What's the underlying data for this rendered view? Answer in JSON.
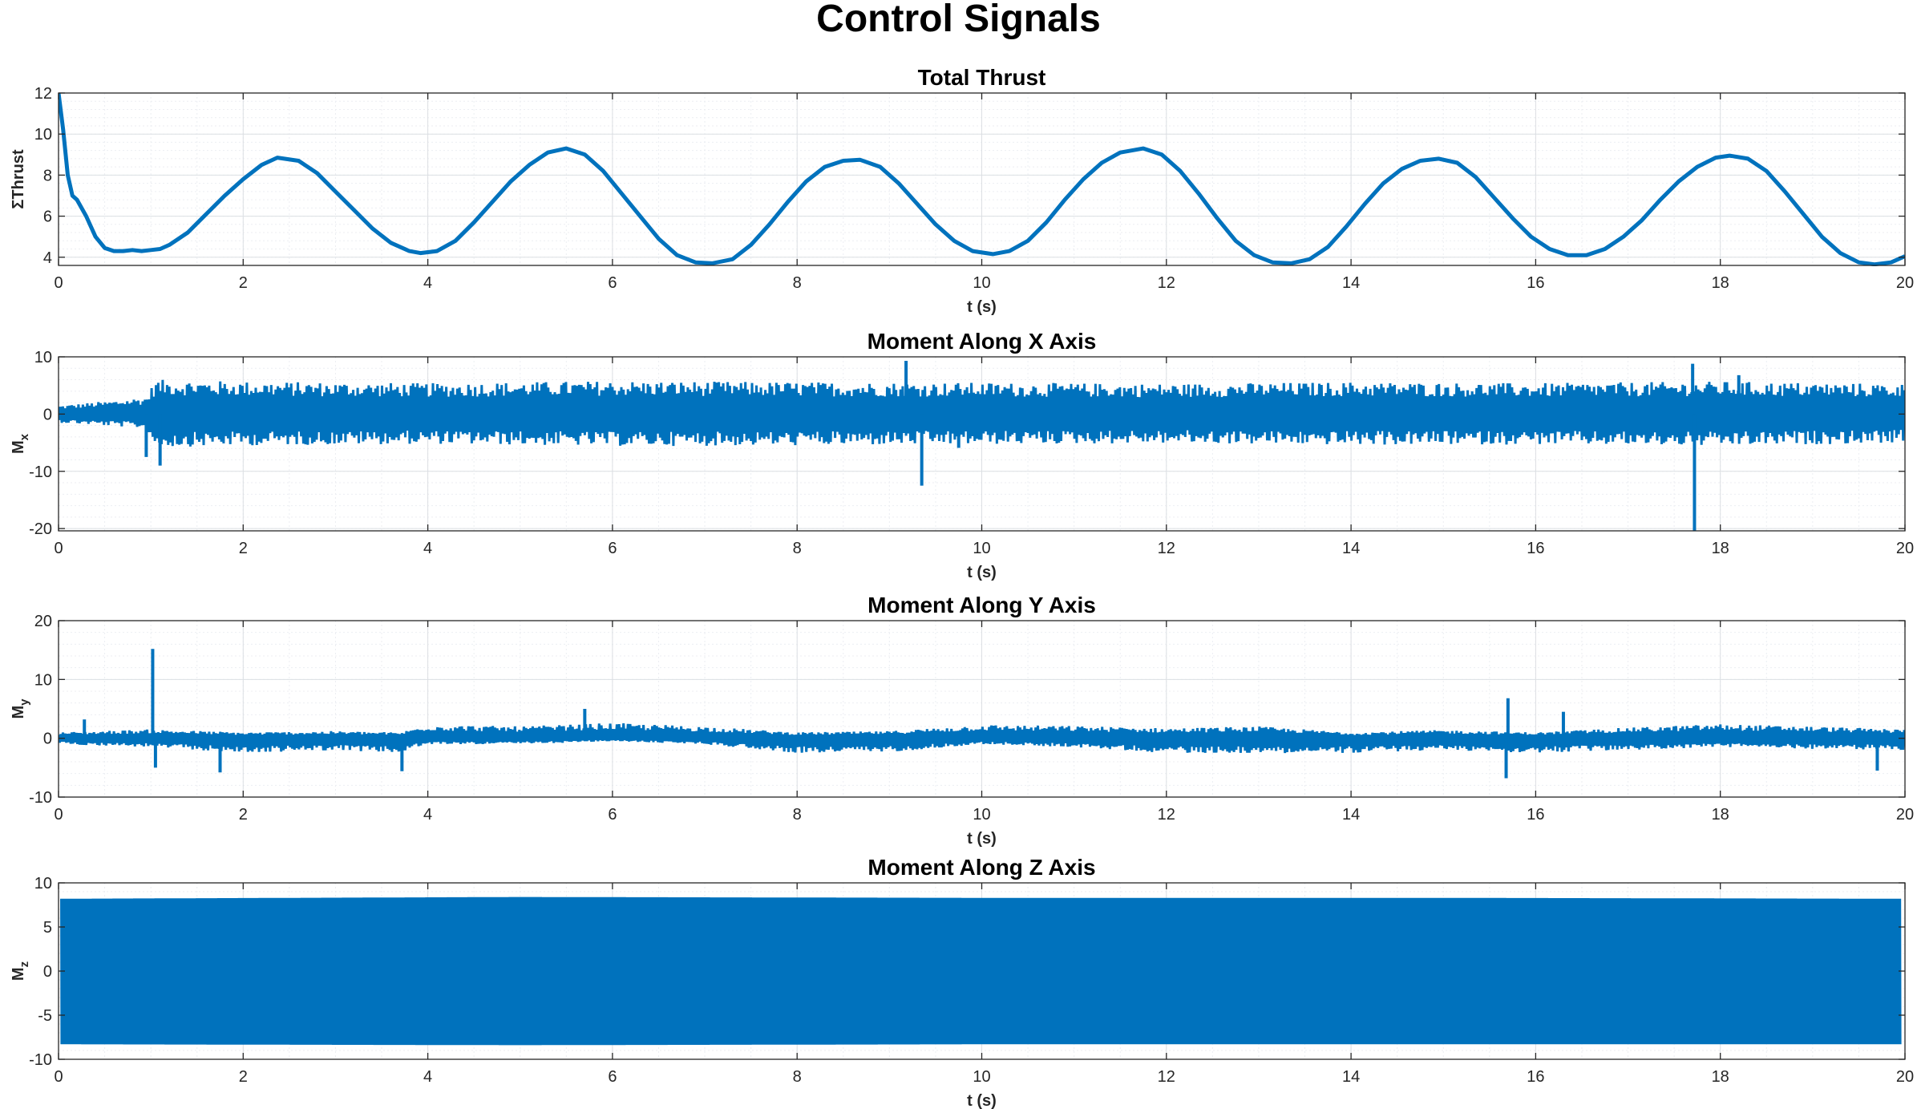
{
  "figure": {
    "title": "Control Signals",
    "line_color": "#0072BD"
  },
  "chart_data": [
    {
      "type": "line",
      "title": "Total Thrust",
      "xlabel": "t (s)",
      "ylabel": "ΣThrust",
      "xlim": [
        0,
        20
      ],
      "ylim": [
        3.6,
        12
      ],
      "xticks": [
        0,
        2,
        4,
        6,
        8,
        10,
        12,
        14,
        16,
        18,
        20
      ],
      "yticks": [
        4,
        6,
        8,
        10,
        12
      ],
      "ytick_labels": [
        "4",
        "6",
        "8",
        "10",
        "12"
      ],
      "grid": true,
      "minor_grid": true,
      "series": [
        {
          "x": [
            0,
            0.05,
            0.1,
            0.15,
            0.2,
            0.3,
            0.4,
            0.5,
            0.6,
            0.7,
            0.8,
            0.9,
            1.0,
            1.1,
            1.2,
            1.4,
            1.6,
            1.8,
            2.0,
            2.2,
            2.37,
            2.6,
            2.8,
            3.0,
            3.2,
            3.4,
            3.6,
            3.8,
            3.92,
            4.1,
            4.3,
            4.5,
            4.7,
            4.9,
            5.1,
            5.3,
            5.5,
            5.7,
            5.9,
            6.1,
            6.3,
            6.5,
            6.7,
            6.9,
            7.08,
            7.3,
            7.5,
            7.7,
            7.9,
            8.1,
            8.3,
            8.5,
            8.68,
            8.9,
            9.1,
            9.3,
            9.5,
            9.7,
            9.9,
            10.12,
            10.3,
            10.5,
            10.7,
            10.9,
            11.1,
            11.3,
            11.5,
            11.75,
            11.95,
            12.15,
            12.35,
            12.55,
            12.75,
            12.95,
            13.15,
            13.35,
            13.55,
            13.75,
            13.95,
            14.15,
            14.35,
            14.55,
            14.75,
            14.95,
            15.15,
            15.35,
            15.55,
            15.75,
            15.95,
            16.15,
            16.35,
            16.55,
            16.75,
            16.95,
            17.15,
            17.35,
            17.55,
            17.75,
            17.95,
            18.1,
            18.3,
            18.5,
            18.7,
            18.9,
            19.1,
            19.3,
            19.5,
            19.67,
            19.85,
            20.0
          ],
          "y": [
            12.0,
            10.2,
            8.0,
            7.0,
            6.8,
            6.0,
            5.0,
            4.45,
            4.3,
            4.3,
            4.35,
            4.3,
            4.35,
            4.4,
            4.6,
            5.2,
            6.1,
            7.0,
            7.8,
            8.5,
            8.85,
            8.7,
            8.1,
            7.2,
            6.3,
            5.4,
            4.7,
            4.3,
            4.2,
            4.3,
            4.8,
            5.7,
            6.7,
            7.7,
            8.5,
            9.1,
            9.3,
            9.0,
            8.2,
            7.1,
            6.0,
            4.9,
            4.1,
            3.75,
            3.7,
            3.9,
            4.6,
            5.6,
            6.7,
            7.7,
            8.4,
            8.7,
            8.75,
            8.4,
            7.6,
            6.6,
            5.6,
            4.8,
            4.3,
            4.15,
            4.3,
            4.8,
            5.7,
            6.8,
            7.8,
            8.6,
            9.1,
            9.3,
            9.0,
            8.2,
            7.1,
            5.9,
            4.8,
            4.1,
            3.75,
            3.7,
            3.9,
            4.5,
            5.5,
            6.6,
            7.6,
            8.3,
            8.7,
            8.8,
            8.6,
            7.9,
            6.9,
            5.9,
            5.0,
            4.4,
            4.1,
            4.1,
            4.4,
            5.0,
            5.8,
            6.8,
            7.7,
            8.4,
            8.85,
            8.95,
            8.8,
            8.2,
            7.2,
            6.1,
            5.0,
            4.2,
            3.75,
            3.65,
            3.75,
            4.05
          ]
        }
      ]
    },
    {
      "type": "line",
      "title": "Moment Along X Axis",
      "xlabel": "t (s)",
      "ylabel": "M_x",
      "xlim": [
        0,
        20
      ],
      "ylim": [
        -20.4,
        10
      ],
      "xticks": [
        0,
        2,
        4,
        6,
        8,
        10,
        12,
        14,
        16,
        18,
        20
      ],
      "yticks": [
        -20,
        -10,
        0,
        10
      ],
      "ytick_labels": [
        "-20",
        "-10",
        "0",
        "10"
      ],
      "grid": true,
      "minor_grid": true,
      "series": [
        {
          "oscillation_envelope": {
            "x": [
              0,
              0.5,
              0.95,
              1.05,
              2,
              4,
              6,
              8,
              10,
              12,
              14,
              16,
              18,
              20
            ],
            "upper": [
              1.5,
              2.2,
              3.0,
              6.0,
              5.7,
              5.4,
              5.8,
              5.6,
              5.5,
              5.3,
              5.6,
              5.4,
              5.7,
              5.3
            ],
            "lower": [
              -1.5,
              -2.0,
              -2.5,
              -5.8,
              -5.5,
              -5.2,
              -5.6,
              -5.5,
              -5.3,
              -5.1,
              -5.4,
              -5.3,
              -5.6,
              -5.0
            ]
          },
          "spikes": [
            {
              "x": 0.95,
              "y": -7.5
            },
            {
              "x": 1.1,
              "y": -9.0
            },
            {
              "x": 9.18,
              "y": 9.3
            },
            {
              "x": 9.35,
              "y": -12.5
            },
            {
              "x": 9.75,
              "y": -5.9
            },
            {
              "x": 17.7,
              "y": 8.8
            },
            {
              "x": 17.72,
              "y": -20.4
            },
            {
              "x": 18.2,
              "y": 6.8
            }
          ]
        }
      ]
    },
    {
      "type": "line",
      "title": "Moment Along Y Axis",
      "xlabel": "t (s)",
      "ylabel": "M_y",
      "xlim": [
        0,
        20
      ],
      "ylim": [
        -10,
        20
      ],
      "xticks": [
        0,
        2,
        4,
        6,
        8,
        10,
        12,
        14,
        16,
        18,
        20
      ],
      "yticks": [
        -10,
        0,
        10,
        20
      ],
      "ytick_labels": [
        "-10",
        "0",
        "10",
        "20"
      ],
      "grid": true,
      "minor_grid": true,
      "series": [
        {
          "oscillation_envelope": {
            "x": [
              0,
              1,
              2,
              3,
              3.7,
              4,
              5,
              6,
              7,
              8,
              9,
              10,
              11,
              12,
              13,
              14,
              15,
              16,
              17,
              18,
              19,
              20
            ],
            "upper": [
              1.0,
              1.5,
              1.0,
              1.2,
              1.0,
              2.3,
              2.0,
              2.6,
              2.0,
              1.0,
              1.2,
              2.3,
              2.1,
              1.7,
              2.0,
              1.0,
              1.4,
              1.0,
              1.8,
              2.4,
              2.0,
              1.5
            ],
            "lower": [
              -1.0,
              -1.5,
              -2.5,
              -2.0,
              -2.5,
              -1.0,
              -1.0,
              -0.5,
              -1.0,
              -2.5,
              -2.3,
              -1.0,
              -1.5,
              -2.5,
              -2.5,
              -2.5,
              -2.0,
              -2.5,
              -2.0,
              -1.5,
              -1.8,
              -2.0
            ]
          },
          "spikes": [
            {
              "x": 0.28,
              "y": 3.2
            },
            {
              "x": 1.02,
              "y": 15.2
            },
            {
              "x": 1.05,
              "y": -5.0
            },
            {
              "x": 1.75,
              "y": -5.8
            },
            {
              "x": 3.72,
              "y": -5.6
            },
            {
              "x": 5.7,
              "y": 5.0
            },
            {
              "x": 15.7,
              "y": 6.8
            },
            {
              "x": 15.68,
              "y": -6.8
            },
            {
              "x": 16.3,
              "y": 4.5
            },
            {
              "x": 19.7,
              "y": -5.5
            }
          ]
        }
      ]
    },
    {
      "type": "line",
      "title": "Moment Along Z Axis",
      "xlabel": "t (s)",
      "ylabel": "M_z",
      "xlim": [
        0,
        20
      ],
      "ylim": [
        -10,
        10
      ],
      "xticks": [
        0,
        2,
        4,
        6,
        8,
        10,
        12,
        14,
        16,
        18,
        20
      ],
      "yticks": [
        -10,
        -5,
        0,
        5,
        10
      ],
      "ytick_labels": [
        "-10",
        "-5",
        "0",
        "5",
        "10"
      ],
      "grid": true,
      "minor_grid": true,
      "series": [
        {
          "oscillation_envelope": {
            "x": [
              0.03,
              5,
              10,
              15,
              19.95
            ],
            "upper": [
              8.2,
              8.4,
              8.3,
              8.3,
              8.2
            ],
            "lower": [
              -8.3,
              -8.4,
              -8.3,
              -8.3,
              -8.3
            ]
          }
        }
      ]
    }
  ]
}
